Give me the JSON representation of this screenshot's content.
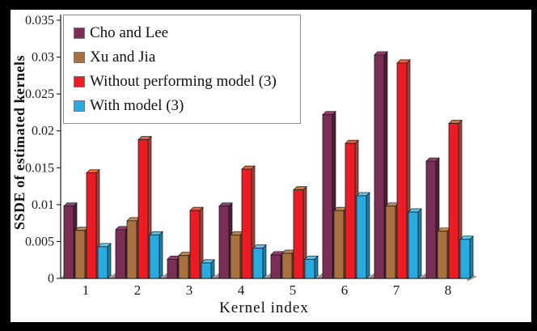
{
  "figure": {
    "border_color": "#000000",
    "plot_background": "#ffffff"
  },
  "chart_data": {
    "type": "bar",
    "title": "",
    "xlabel": "Kernel index",
    "ylabel": "SSDE of estimated kernels",
    "categories": [
      "1",
      "2",
      "3",
      "4",
      "5",
      "6",
      "7",
      "8"
    ],
    "series": [
      {
        "name": "Cho and Lee",
        "color": "#7B2D56",
        "side_color": "#4E1C37",
        "top_color": "#94406E",
        "values": [
          0.0098,
          0.0066,
          0.0026,
          0.0098,
          0.0032,
          0.0222,
          0.0303,
          0.0159
        ]
      },
      {
        "name": "Xu and Jia",
        "color": "#A9713F",
        "side_color": "#6F4826",
        "top_color": "#C08A55",
        "values": [
          0.0065,
          0.0078,
          0.0031,
          0.0059,
          0.0034,
          0.0092,
          0.0098,
          0.0064
        ]
      },
      {
        "name": "Without performing model (3)",
        "color": "#ED1C24",
        "side_color": "#9E4238",
        "top_color": "#E8623C",
        "values": [
          0.0143,
          0.0188,
          0.0092,
          0.0148,
          0.012,
          0.0183,
          0.0292,
          0.021
        ]
      },
      {
        "name": "With model (3)",
        "color": "#29ABE2",
        "side_color": "#1A7FA9",
        "top_color": "#5BC6F0",
        "values": [
          0.0043,
          0.0059,
          0.0021,
          0.0041,
          0.0026,
          0.0112,
          0.009,
          0.0053
        ]
      }
    ],
    "ylim": [
      0,
      0.035
    ],
    "yticks": [
      0,
      0.005,
      0.01,
      0.015,
      0.02,
      0.025,
      0.03,
      0.035
    ],
    "ytick_labels": [
      "0",
      "0.005",
      "0.01",
      "0.015",
      "0.02",
      "0.025",
      "0.03",
      "0.035"
    ],
    "grid": false,
    "legend_position": "upper-left",
    "axis_color": "#1a1a1a",
    "floor_color": "#aaaaaa"
  }
}
